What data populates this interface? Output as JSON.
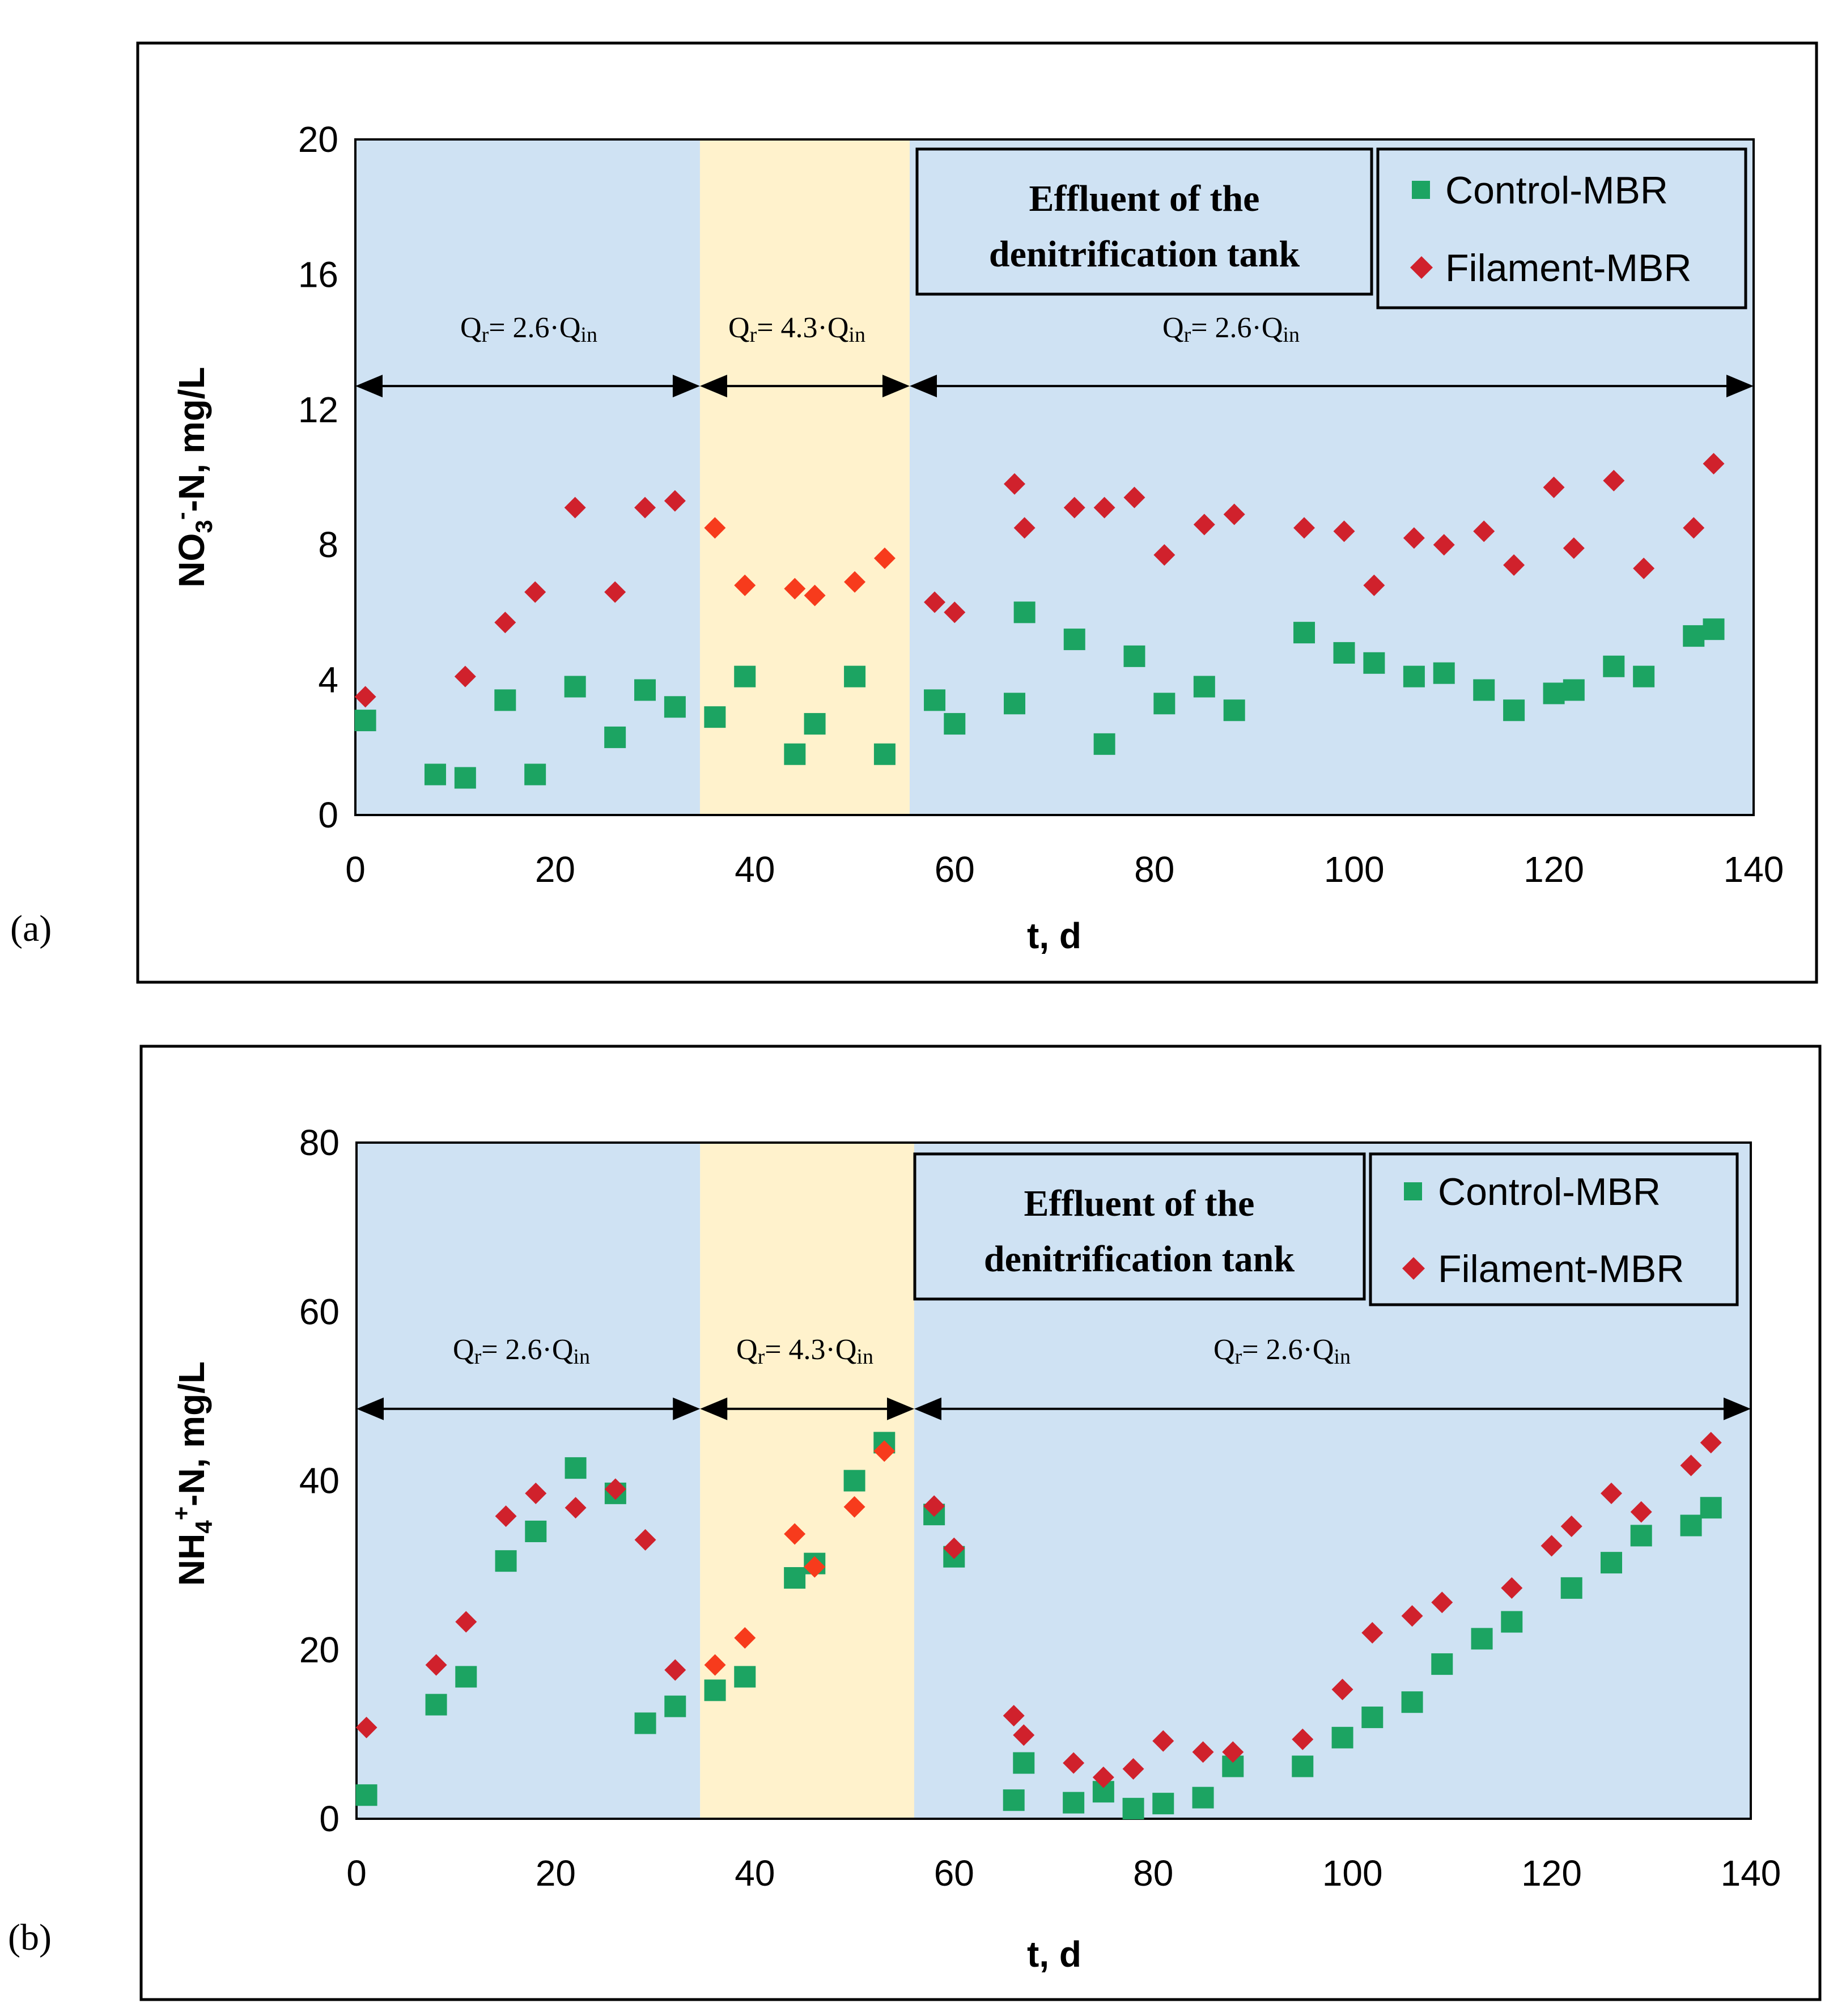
{
  "colors": {
    "region_blue": "#cfe2f3",
    "region_yellow": "#fff2cc",
    "control": "#1ca462",
    "filament": "#d0212c",
    "filament_mid": "#f73b1c"
  },
  "legend": {
    "control": "Control-MBR",
    "filament": "Filament-MBR"
  },
  "effluent_box": {
    "line1": "Effluent of the",
    "line2": "denitrification tank"
  },
  "regime_labels": {
    "low": {
      "main": "Q",
      "sub": "r",
      "rest": "= 2.6·Q",
      "sub2": "in"
    },
    "high": {
      "main": "Q",
      "sub": "r",
      "rest": "= 4.3·Q",
      "sub2": "in"
    }
  },
  "chart_data": [
    {
      "type": "scatter",
      "panel_label": "(a)",
      "xlabel": "t, d",
      "ylabel": {
        "a": "NO",
        "sub": "3",
        "sup": "-",
        "b": "-N, mg/L"
      },
      "xlim": [
        0,
        140
      ],
      "ylim": [
        0,
        20
      ],
      "xticks": [
        "0",
        "20",
        "40",
        "60",
        "80",
        "100",
        "120",
        "140"
      ],
      "yticks": [
        "0",
        "4",
        "8",
        "12",
        "16",
        "20"
      ],
      "regions": [
        {
          "from": 0,
          "to": 34.5,
          "kind": "low"
        },
        {
          "from": 34.5,
          "to": 55.5,
          "kind": "high"
        },
        {
          "from": 55.5,
          "to": 140,
          "kind": "low"
        }
      ],
      "arrow_y": 12.7,
      "series": [
        {
          "name": "Control-MBR",
          "marker": "square",
          "x": [
            1,
            8,
            11,
            15,
            18,
            22,
            26,
            29,
            32,
            36,
            39,
            44,
            46,
            50,
            53,
            58,
            60,
            66,
            67,
            72,
            75,
            78,
            81,
            85,
            88,
            95,
            99,
            102,
            106,
            109,
            113,
            116,
            120,
            122,
            126,
            129,
            134,
            136
          ],
          "y": [
            2.8,
            1.2,
            1.1,
            3.4,
            1.2,
            3.8,
            2.3,
            3.7,
            3.2,
            2.9,
            4.1,
            1.8,
            2.7,
            4.1,
            1.8,
            3.4,
            2.7,
            3.3,
            6.0,
            5.2,
            2.1,
            4.7,
            3.3,
            3.8,
            3.1,
            5.4,
            4.8,
            4.5,
            4.1,
            4.2,
            3.7,
            3.1,
            3.6,
            3.7,
            4.4,
            4.1,
            5.3,
            5.5
          ]
        },
        {
          "name": "Filament-MBR",
          "marker": "diamond",
          "x": [
            1,
            11,
            15,
            18,
            22,
            26,
            29,
            32,
            36,
            39,
            44,
            46,
            50,
            53,
            58,
            60,
            66,
            67,
            72,
            75,
            78,
            81,
            85,
            88,
            95,
            99,
            102,
            106,
            109,
            113,
            116,
            120,
            122,
            126,
            129,
            134,
            136
          ],
          "y": [
            3.5,
            4.1,
            5.7,
            6.6,
            9.1,
            6.6,
            9.1,
            9.3,
            8.5,
            6.8,
            6.7,
            6.5,
            6.9,
            7.6,
            6.3,
            6.0,
            9.8,
            8.5,
            9.1,
            9.1,
            9.4,
            7.7,
            8.6,
            8.9,
            8.5,
            8.4,
            6.8,
            8.2,
            8.0,
            8.4,
            7.4,
            9.7,
            7.9,
            9.9,
            7.3,
            8.5,
            10.4
          ]
        }
      ]
    },
    {
      "type": "scatter",
      "panel_label": "(b)",
      "xlabel": "t, d",
      "ylabel": {
        "a": "NH",
        "sub": "4",
        "sup": "+",
        "b": "-N, mg/L"
      },
      "xlim": [
        0,
        140
      ],
      "ylim": [
        0,
        80
      ],
      "xticks": [
        "0",
        "20",
        "40",
        "60",
        "80",
        "100",
        "120",
        "140"
      ],
      "yticks": [
        "0",
        "20",
        "40",
        "60",
        "80"
      ],
      "regions": [
        {
          "from": 0,
          "to": 34.5,
          "kind": "low"
        },
        {
          "from": 34.5,
          "to": 56,
          "kind": "high"
        },
        {
          "from": 56,
          "to": 140,
          "kind": "low"
        }
      ],
      "arrow_y": 48.5,
      "series": [
        {
          "name": "Control-MBR",
          "marker": "square",
          "x": [
            1,
            8,
            11,
            15,
            18,
            22,
            26,
            29,
            32,
            36,
            39,
            44,
            46,
            50,
            53,
            58,
            60,
            66,
            67,
            72,
            75,
            78,
            81,
            85,
            88,
            95,
            99,
            102,
            106,
            109,
            113,
            116,
            122,
            126,
            129,
            134,
            136
          ],
          "y": [
            2.8,
            13.5,
            16.8,
            30.5,
            34,
            41.5,
            38.5,
            11.3,
            13.3,
            15.2,
            16.8,
            28.5,
            30.2,
            40,
            44.5,
            36,
            31,
            2.2,
            6.6,
            1.9,
            3.2,
            1.2,
            1.8,
            2.5,
            6.2,
            6.2,
            9.6,
            12,
            13.8,
            18.3,
            21.3,
            23.3,
            27.3,
            30.3,
            33.5,
            34.7,
            36.8
          ]
        },
        {
          "name": "Filament-MBR",
          "marker": "diamond",
          "x": [
            1,
            8,
            11,
            15,
            18,
            22,
            26,
            29,
            32,
            36,
            39,
            44,
            46,
            50,
            53,
            58,
            60,
            66,
            67,
            72,
            75,
            78,
            81,
            85,
            88,
            95,
            99,
            102,
            106,
            109,
            116,
            120,
            122,
            126,
            129,
            134,
            136
          ],
          "y": [
            10.8,
            18.2,
            23.3,
            35.8,
            38.5,
            36.8,
            39,
            33,
            17.6,
            18.2,
            21.4,
            33.7,
            29.8,
            36.9,
            43.5,
            37,
            32,
            12.2,
            9.9,
            6.6,
            4.9,
            5.9,
            9.2,
            7.9,
            7.9,
            9.4,
            15.3,
            22,
            24,
            25.6,
            27.3,
            32.3,
            34.6,
            38.5,
            36.3,
            41.8,
            44.5
          ]
        }
      ]
    }
  ]
}
